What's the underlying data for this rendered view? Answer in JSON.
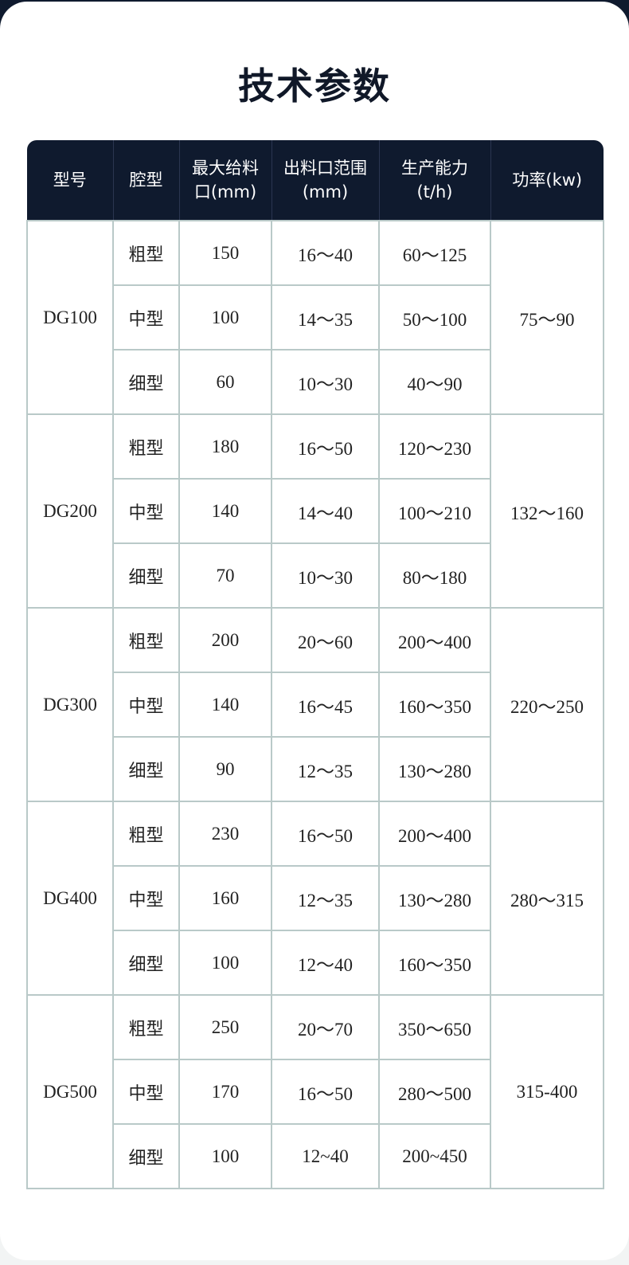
{
  "title": "技术参数",
  "headers": [
    [
      "型号"
    ],
    [
      "腔型"
    ],
    [
      "最大给料",
      "口(mm)"
    ],
    [
      "出料口范围",
      "(mm)"
    ],
    [
      "生产能力",
      "(t/h)"
    ],
    [
      "功率(kw)"
    ]
  ],
  "groups": [
    {
      "model": "DG100",
      "power": "75～90",
      "rows": [
        {
          "cavity": "粗型",
          "feed": "150",
          "discharge": "16～40",
          "capacity": "60～125"
        },
        {
          "cavity": "中型",
          "feed": "100",
          "discharge": "14～35",
          "capacity": "50～100"
        },
        {
          "cavity": "细型",
          "feed": "60",
          "discharge": "10～30",
          "capacity": "40～90"
        }
      ]
    },
    {
      "model": "DG200",
      "power": "132～160",
      "rows": [
        {
          "cavity": "粗型",
          "feed": "180",
          "discharge": "16～50",
          "capacity": "120～230"
        },
        {
          "cavity": "中型",
          "feed": "140",
          "discharge": "14～40",
          "capacity": "100～210"
        },
        {
          "cavity": "细型",
          "feed": "70",
          "discharge": "10～30",
          "capacity": "80～180"
        }
      ]
    },
    {
      "model": "DG300",
      "power": "220～250",
      "rows": [
        {
          "cavity": "粗型",
          "feed": "200",
          "discharge": "20～60",
          "capacity": "200～400"
        },
        {
          "cavity": "中型",
          "feed": "140",
          "discharge": "16～45",
          "capacity": "160～350"
        },
        {
          "cavity": "细型",
          "feed": "90",
          "discharge": "12～35",
          "capacity": "130～280"
        }
      ]
    },
    {
      "model": "DG400",
      "power": "280～315",
      "rows": [
        {
          "cavity": "粗型",
          "feed": "230",
          "discharge": "16～50",
          "capacity": "200～400"
        },
        {
          "cavity": "中型",
          "feed": "160",
          "discharge": "12～35",
          "capacity": "130～280"
        },
        {
          "cavity": "细型",
          "feed": "100",
          "discharge": "12～40",
          "capacity": "160～350"
        }
      ]
    },
    {
      "model": "DG500",
      "power": "315-400",
      "rows": [
        {
          "cavity": "粗型",
          "feed": "250",
          "discharge": "20～70",
          "capacity": "350～650"
        },
        {
          "cavity": "中型",
          "feed": "170",
          "discharge": "16～50",
          "capacity": "280～500"
        },
        {
          "cavity": "细型",
          "feed": "100",
          "discharge": "12~40",
          "capacity": "200~450"
        }
      ]
    }
  ]
}
